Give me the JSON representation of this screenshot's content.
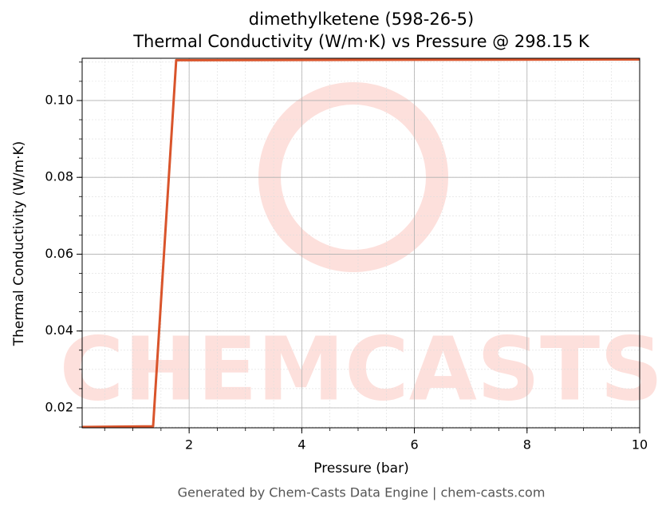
{
  "chart_data": {
    "type": "line",
    "title": "dimethylketene (598-26-5)",
    "subtitle": "Thermal Conductivity (W/m·K) vs Pressure @ 298.15 K",
    "x_label": "Pressure (bar)",
    "y_label": "Thermal Conductivity (W/m·K)",
    "footer": "Generated by Chem-Casts Data Engine | chem-casts.com",
    "watermark": "CHEMCASTS",
    "x": [
      0.1,
      1.36,
      1.77,
      10
    ],
    "series": [
      {
        "name": "Thermal Conductivity",
        "color": "#d9542b",
        "values": [
          0.015,
          0.0152,
          0.1105,
          0.1107
        ]
      }
    ],
    "xlim": [
      0.1,
      10
    ],
    "xticks": [
      2,
      4,
      6,
      8,
      10
    ],
    "ylim": [
      0.0148,
      0.111
    ],
    "yticks": [
      {
        "value": 0.02,
        "label": "0.02"
      },
      {
        "value": 0.04,
        "label": "0.04"
      },
      {
        "value": 0.06,
        "label": "0.06"
      },
      {
        "value": 0.08,
        "label": "0.08"
      },
      {
        "value": 0.1,
        "label": "0.10"
      }
    ],
    "grid": true,
    "minor_grid": true
  }
}
